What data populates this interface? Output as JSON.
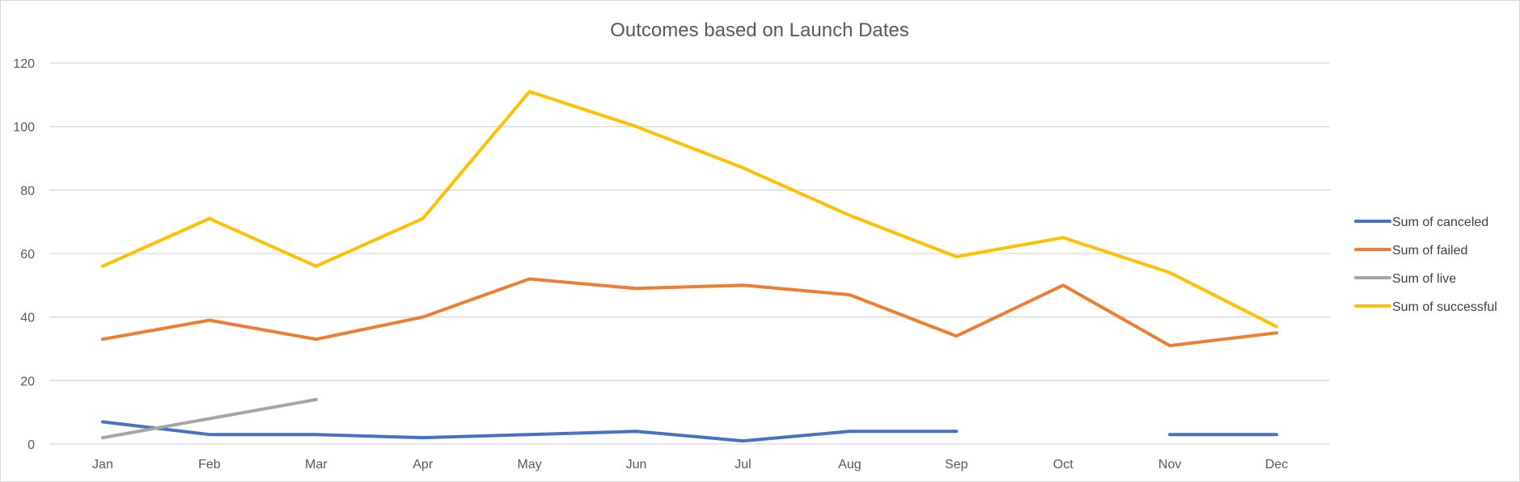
{
  "chart_data": {
    "type": "line",
    "title": "Outcomes based on Launch Dates",
    "xlabel": "",
    "ylabel": "",
    "categories": [
      "Jan",
      "Feb",
      "Mar",
      "Apr",
      "May",
      "Jun",
      "Jul",
      "Aug",
      "Sep",
      "Oct",
      "Nov",
      "Dec"
    ],
    "ylim": [
      0,
      120
    ],
    "yticks": [
      0,
      20,
      40,
      60,
      80,
      100,
      120
    ],
    "grid": true,
    "legend_position": "right",
    "series": [
      {
        "name": "Sum of canceled",
        "color": "#4472C4",
        "values": [
          7,
          3,
          3,
          2,
          3,
          4,
          1,
          4,
          4,
          null,
          3,
          3
        ]
      },
      {
        "name": "Sum of failed",
        "color": "#ED7D31",
        "values": [
          33,
          39,
          33,
          40,
          52,
          49,
          50,
          47,
          34,
          50,
          31,
          35
        ]
      },
      {
        "name": "Sum of live",
        "color": "#A5A5A5",
        "values": [
          2,
          8,
          14,
          null,
          null,
          null,
          null,
          null,
          null,
          null,
          null,
          null
        ]
      },
      {
        "name": "Sum of successful",
        "color": "#FFC000",
        "values": [
          56,
          71,
          56,
          71,
          111,
          100,
          87,
          72,
          59,
          65,
          54,
          37
        ]
      }
    ]
  }
}
